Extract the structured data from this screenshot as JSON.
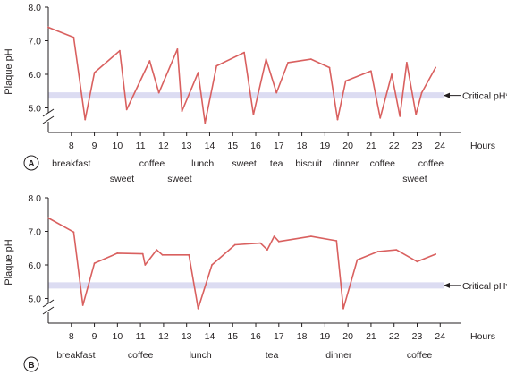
{
  "colors": {
    "line": "#d9605f",
    "critical_band": "#dcdcf2",
    "axis": "#231f20"
  },
  "chart_data": [
    {
      "type": "line",
      "panel_label": "A",
      "ylabel": "Plaque pH",
      "xlabel": "Hours",
      "ylim": [
        4.5,
        8.0
      ],
      "y_axis_break": true,
      "y_ticks": [
        "8.0",
        "7.0",
        "6.0",
        "5.0"
      ],
      "y_tick_values": [
        8.0,
        7.0,
        6.0,
        5.0
      ],
      "x_ticks": [
        "8",
        "9",
        "10",
        "11",
        "12",
        "13",
        "14",
        "15",
        "16",
        "17",
        "18",
        "19",
        "20",
        "21",
        "22",
        "23",
        "24"
      ],
      "x_tick_values": [
        8,
        9,
        10,
        11,
        12,
        13,
        14,
        15,
        16,
        17,
        18,
        19,
        20,
        21,
        22,
        23,
        24
      ],
      "xlim": [
        7.0,
        24.3
      ],
      "critical_ph": {
        "label": "Critical pH*",
        "value": 5.37
      },
      "meals": [
        {
          "label": "breakfast",
          "x": 8.0,
          "row": 1
        },
        {
          "label": "sweet",
          "x": 10.2,
          "row": 2
        },
        {
          "label": "coffee",
          "x": 11.5,
          "row": 1
        },
        {
          "label": "sweet",
          "x": 12.7,
          "row": 2
        },
        {
          "label": "lunch",
          "x": 13.7,
          "row": 1
        },
        {
          "label": "sweet",
          "x": 15.5,
          "row": 1
        },
        {
          "label": "tea",
          "x": 16.9,
          "row": 1
        },
        {
          "label": "biscuit",
          "x": 18.3,
          "row": 1
        },
        {
          "label": "dinner",
          "x": 19.9,
          "row": 1
        },
        {
          "label": "coffee",
          "x": 21.5,
          "row": 1
        },
        {
          "label": "sweet",
          "x": 22.9,
          "row": 2
        },
        {
          "label": "coffee",
          "x": 23.6,
          "row": 1
        }
      ],
      "series": [
        {
          "x": [
            7.0,
            8.1,
            8.6,
            9.0,
            10.1,
            10.4,
            11.4,
            11.8,
            12.6,
            12.8,
            13.5,
            13.8,
            14.3,
            15.5,
            15.9,
            16.45,
            16.9,
            17.4,
            18.4,
            19.2,
            19.55,
            19.9,
            21.0,
            21.4,
            21.9,
            22.25,
            22.55,
            22.95,
            23.2,
            23.8
          ],
          "y": [
            7.4,
            7.1,
            4.65,
            6.05,
            6.7,
            4.95,
            6.4,
            5.45,
            6.75,
            4.9,
            6.05,
            4.55,
            6.25,
            6.65,
            4.8,
            6.45,
            5.45,
            6.35,
            6.45,
            6.2,
            4.65,
            5.8,
            6.1,
            4.7,
            6.0,
            4.75,
            6.35,
            4.8,
            5.45,
            6.2
          ]
        }
      ]
    },
    {
      "type": "line",
      "panel_label": "B",
      "ylabel": "Plaque pH",
      "xlabel": "Hours",
      "ylim": [
        4.5,
        8.0
      ],
      "y_axis_break": true,
      "y_ticks": [
        "8.0",
        "7.0",
        "6.0",
        "5.0"
      ],
      "y_tick_values": [
        8.0,
        7.0,
        6.0,
        5.0
      ],
      "x_ticks": [
        "8",
        "9",
        "10",
        "11",
        "12",
        "13",
        "14",
        "15",
        "16",
        "17",
        "18",
        "19",
        "20",
        "21",
        "22",
        "23",
        "24"
      ],
      "x_tick_values": [
        8,
        9,
        10,
        11,
        12,
        13,
        14,
        15,
        16,
        17,
        18,
        19,
        20,
        21,
        22,
        23,
        24
      ],
      "xlim": [
        7.0,
        24.3
      ],
      "critical_ph": {
        "label": "Critical pH*",
        "value": 5.39
      },
      "meals": [
        {
          "label": "breakfast",
          "x": 8.2,
          "row": 1
        },
        {
          "label": "coffee",
          "x": 11.0,
          "row": 1
        },
        {
          "label": "lunch",
          "x": 13.6,
          "row": 1
        },
        {
          "label": "tea",
          "x": 16.7,
          "row": 1
        },
        {
          "label": "dinner",
          "x": 19.6,
          "row": 1
        },
        {
          "label": "coffee",
          "x": 23.1,
          "row": 1
        }
      ],
      "series": [
        {
          "x": [
            7.0,
            8.1,
            8.5,
            9.0,
            10.0,
            11.1,
            11.2,
            11.7,
            11.95,
            13.1,
            13.5,
            14.1,
            15.1,
            16.2,
            16.5,
            16.8,
            17.0,
            18.4,
            19.5,
            19.8,
            20.4,
            21.3,
            22.1,
            23.0,
            23.8
          ],
          "y": [
            7.4,
            6.98,
            4.8,
            6.05,
            6.35,
            6.33,
            6.0,
            6.45,
            6.3,
            6.3,
            4.7,
            6.0,
            6.6,
            6.65,
            6.45,
            6.85,
            6.7,
            6.85,
            6.72,
            4.7,
            6.15,
            6.4,
            6.45,
            6.1,
            6.32
          ]
        }
      ]
    }
  ]
}
